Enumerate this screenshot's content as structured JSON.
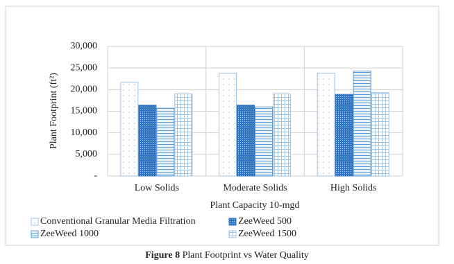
{
  "chart_data": {
    "type": "bar",
    "x_label": "Plant Capacity 10-mgd",
    "y_label": "Plant Footprint (ft²)",
    "categories": [
      "Low Solids",
      "Moderate Solids",
      "High Solids"
    ],
    "series": [
      {
        "name": "Conventional Granular Media Filtration",
        "color": "#9dc3e6",
        "pattern": "dots",
        "values": [
          21700,
          23800,
          23800
        ]
      },
      {
        "name": "ZeeWeed 500",
        "color": "#2e75c6",
        "pattern": "dense",
        "values": [
          16400,
          16400,
          18900
        ]
      },
      {
        "name": "ZeeWeed 1000",
        "color": "#5b9bd5",
        "pattern": "hlines",
        "values": [
          15700,
          16000,
          24300
        ]
      },
      {
        "name": "ZeeWeed 1500",
        "color": "#9dc3e6",
        "pattern": "grid",
        "values": [
          19000,
          19000,
          19300
        ]
      }
    ],
    "ylim": [
      0,
      30000
    ],
    "yticks": [
      {
        "value": 0,
        "label": "-"
      },
      {
        "value": 5000,
        "label": "5,000"
      },
      {
        "value": 10000,
        "label": "10,000"
      },
      {
        "value": 15000,
        "label": "15,000"
      },
      {
        "value": 20000,
        "label": "20,000"
      },
      {
        "value": 25000,
        "label": "25,000"
      },
      {
        "value": 30000,
        "label": "30,000"
      }
    ],
    "grid": true
  },
  "caption": {
    "label": "Figure 8",
    "text": "Plant Footprint vs Water Quality"
  }
}
